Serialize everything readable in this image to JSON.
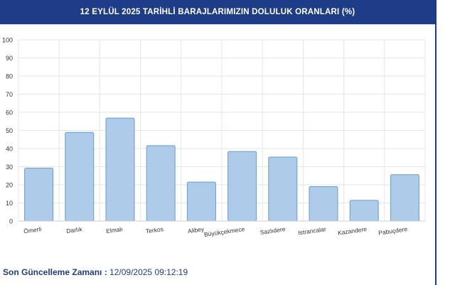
{
  "header": {
    "title": "12 EYLÜL 2025 TARİHLİ BARAJLARIMIZIN DOLULUK ORANLARI (%)"
  },
  "footer": {
    "label": "Son Güncelleme Zamanı :",
    "value": "12/09/2025 09:12:19"
  },
  "colors": {
    "header_bg": "#1f3c88",
    "bar_fill": "#aecbea",
    "bar_stroke": "#6a9ccc"
  },
  "chart_data": {
    "type": "bar",
    "title": "",
    "xlabel": "",
    "ylabel": "",
    "categories": [
      "Ömerli",
      "Darlık",
      "Elmalı",
      "Terkos",
      "Alibey",
      "Büyükçekmece",
      "Sazlıdere",
      "Istrancalar",
      "Kazandere",
      "Pabuçdere"
    ],
    "values": [
      29.2,
      48.9,
      56.8,
      41.6,
      21.5,
      38.4,
      35.3,
      19.0,
      11.4,
      25.6
    ],
    "ylim": [
      0,
      100
    ],
    "yticks": [
      0,
      10,
      20,
      30,
      40,
      50,
      60,
      70,
      80,
      90,
      100
    ],
    "grid": true,
    "legend": "none"
  }
}
